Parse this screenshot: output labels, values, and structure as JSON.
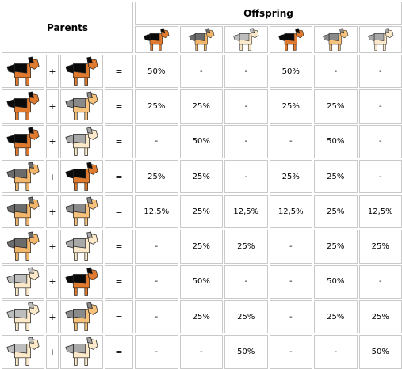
{
  "header": {
    "parents_label": "Parents",
    "offspring_label": "Offspring"
  },
  "colors": {
    "black_tan": {
      "body": "#e07a2e",
      "saddle": "#0a0a0a",
      "name": "black-tan-dog-icon"
    },
    "gray_tan": {
      "body": "#f2b66b",
      "saddle": "#6b6b6b",
      "name": "gray-tan-dog-icon"
    },
    "silver_cream": {
      "body": "#fbe9c9",
      "saddle": "#bdbdbd",
      "name": "silver-cream-dog-icon"
    },
    "red_black": {
      "body": "#e07a2e",
      "saddle": "#0a0a0a",
      "name": "red-black-dog-icon"
    },
    "wheat_gray": {
      "body": "#f7c27c",
      "saddle": "#8a8a8a",
      "name": "wheat-gray-dog-icon"
    },
    "cream_gray": {
      "body": "#fbe9c9",
      "saddle": "#a8a8a8",
      "name": "cream-gray-dog-icon"
    }
  },
  "offspring_icons": [
    "black_tan",
    "gray_tan",
    "silver_cream",
    "red_black",
    "wheat_gray",
    "cream_gray"
  ],
  "plus": "+",
  "equals": "=",
  "rows": [
    {
      "p1": "black_tan",
      "p2": "red_black",
      "values": [
        "50%",
        "-",
        "-",
        "50%",
        "-",
        "-"
      ]
    },
    {
      "p1": "black_tan",
      "p2": "wheat_gray",
      "values": [
        "25%",
        "25%",
        "-",
        "25%",
        "25%",
        "-"
      ]
    },
    {
      "p1": "black_tan",
      "p2": "cream_gray",
      "values": [
        "-",
        "50%",
        "-",
        "-",
        "50%",
        "-"
      ]
    },
    {
      "p1": "gray_tan",
      "p2": "red_black",
      "values": [
        "25%",
        "25%",
        "-",
        "25%",
        "25%",
        "-"
      ]
    },
    {
      "p1": "gray_tan",
      "p2": "wheat_gray",
      "values": [
        "12,5%",
        "25%",
        "12,5%",
        "12,5%",
        "25%",
        "12,5%"
      ]
    },
    {
      "p1": "gray_tan",
      "p2": "cream_gray",
      "values": [
        "-",
        "25%",
        "25%",
        "-",
        "25%",
        "25%"
      ]
    },
    {
      "p1": "silver_cream",
      "p2": "red_black",
      "values": [
        "-",
        "50%",
        "-",
        "-",
        "50%",
        "-"
      ]
    },
    {
      "p1": "silver_cream",
      "p2": "wheat_gray",
      "values": [
        "-",
        "25%",
        "25%",
        "-",
        "25%",
        "25%"
      ]
    },
    {
      "p1": "silver_cream",
      "p2": "cream_gray",
      "values": [
        "-",
        "-",
        "50%",
        "-",
        "-",
        "50%"
      ]
    }
  ]
}
